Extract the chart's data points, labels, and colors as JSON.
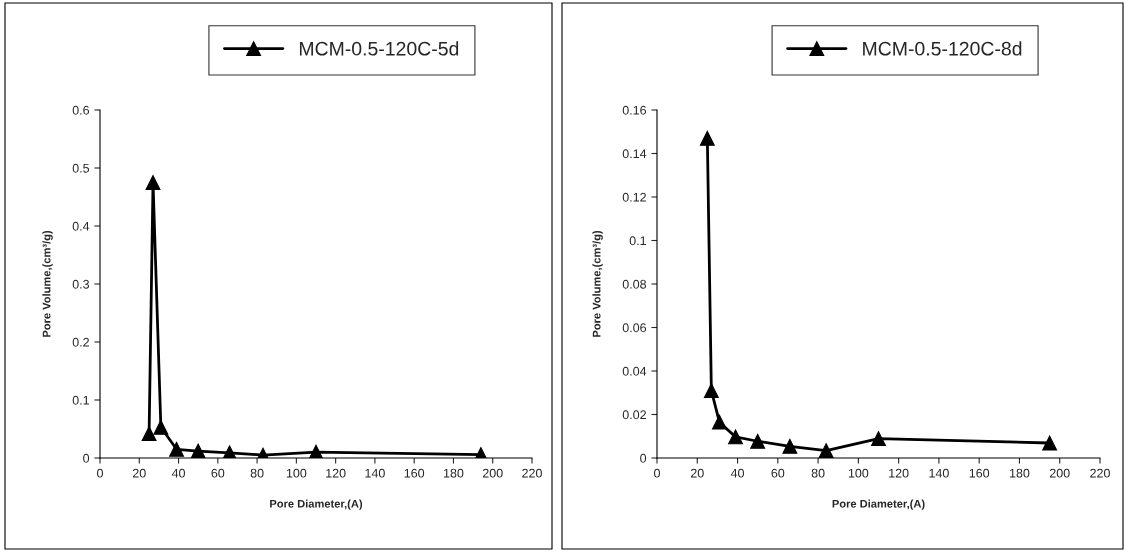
{
  "chart_data": [
    {
      "type": "line",
      "xlabel": "Pore Diameter,(A)",
      "ylabel": "Pore Volume,(cm³/g)",
      "xlim": [
        0,
        220
      ],
      "xticks": [
        0,
        20,
        40,
        60,
        80,
        100,
        120,
        140,
        160,
        180,
        200,
        220
      ],
      "ylim": [
        0,
        0.6
      ],
      "yticks": [
        0,
        0.1,
        0.2,
        0.3,
        0.4,
        0.5,
        0.6
      ],
      "grid": false,
      "legend": "top",
      "marker": "triangle",
      "line_style": "solid",
      "series": [
        {
          "name": "MCM-0.5-120C-5d",
          "color": "#000000",
          "x": [
            25,
            27,
            31,
            39,
            50,
            66,
            83,
            110,
            194
          ],
          "values": [
            0.042,
            0.475,
            0.053,
            0.015,
            0.012,
            0.009,
            0.005,
            0.01,
            0.006
          ]
        }
      ]
    },
    {
      "type": "line",
      "xlabel": "Pore Diameter,(A)",
      "ylabel": "Pore Volume,(cm³/g)",
      "xlim": [
        0,
        220
      ],
      "xticks": [
        0,
        20,
        40,
        60,
        80,
        100,
        120,
        140,
        160,
        180,
        200,
        220
      ],
      "ylim": [
        0,
        0.16
      ],
      "yticks": [
        0,
        0.02,
        0.04,
        0.06,
        0.08,
        0.1,
        0.12,
        0.14,
        0.16
      ],
      "grid": false,
      "legend": "top",
      "marker": "triangle",
      "line_style": "solid",
      "series": [
        {
          "name": "MCM-0.5-120C-8d",
          "color": "#000000",
          "x": [
            25,
            27,
            31,
            39,
            50,
            66,
            84,
            110,
            195
          ],
          "values": [
            0.147,
            0.031,
            0.0165,
            0.0097,
            0.0077,
            0.0054,
            0.0034,
            0.0089,
            0.0069
          ]
        }
      ]
    }
  ]
}
